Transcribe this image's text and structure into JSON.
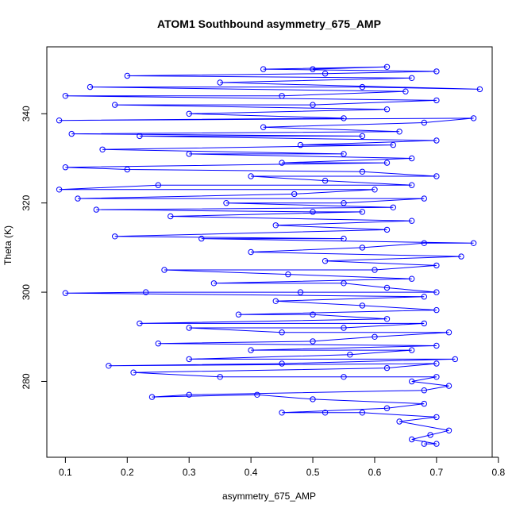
{
  "chart_data": {
    "type": "scatter",
    "title": "ATOM1 Southbound asymmetry_675_AMP",
    "xlabel": "asymmetry_675_AMP",
    "ylabel": "Theta (K)",
    "xlim": [
      0.07,
      0.79
    ],
    "ylim": [
      263,
      355
    ],
    "x_ticks": [
      0.1,
      0.2,
      0.3,
      0.4,
      0.5,
      0.6,
      0.7,
      0.8
    ],
    "y_ticks": [
      280,
      300,
      320,
      340
    ],
    "x_tick_labels": [
      "0.1",
      "0.2",
      "0.3",
      "0.4",
      "0.5",
      "0.6",
      "0.7",
      "0.8"
    ],
    "y_tick_labels": [
      "280",
      "300",
      "320",
      "340"
    ],
    "grid": false,
    "legend": "none",
    "series": [
      {
        "color": "#0000ff",
        "marker": "open-circle",
        "line": true,
        "points": [
          [
            0.68,
            266
          ],
          [
            0.7,
            266
          ],
          [
            0.66,
            267
          ],
          [
            0.69,
            268
          ],
          [
            0.72,
            269
          ],
          [
            0.64,
            271
          ],
          [
            0.7,
            272
          ],
          [
            0.58,
            273
          ],
          [
            0.52,
            273
          ],
          [
            0.45,
            273
          ],
          [
            0.62,
            274
          ],
          [
            0.68,
            275
          ],
          [
            0.5,
            276
          ],
          [
            0.41,
            277
          ],
          [
            0.24,
            276.5
          ],
          [
            0.3,
            277
          ],
          [
            0.68,
            278
          ],
          [
            0.72,
            279
          ],
          [
            0.66,
            280
          ],
          [
            0.7,
            281
          ],
          [
            0.55,
            281
          ],
          [
            0.35,
            281
          ],
          [
            0.21,
            282
          ],
          [
            0.62,
            283
          ],
          [
            0.7,
            284
          ],
          [
            0.17,
            283.5
          ],
          [
            0.45,
            284
          ],
          [
            0.73,
            285
          ],
          [
            0.3,
            285
          ],
          [
            0.56,
            286
          ],
          [
            0.66,
            287
          ],
          [
            0.4,
            287
          ],
          [
            0.7,
            288
          ],
          [
            0.25,
            288.5
          ],
          [
            0.5,
            289
          ],
          [
            0.6,
            290
          ],
          [
            0.72,
            291
          ],
          [
            0.45,
            291
          ],
          [
            0.3,
            292
          ],
          [
            0.55,
            292
          ],
          [
            0.68,
            293
          ],
          [
            0.22,
            293
          ],
          [
            0.62,
            294
          ],
          [
            0.5,
            295
          ],
          [
            0.38,
            295
          ],
          [
            0.7,
            296
          ],
          [
            0.58,
            297
          ],
          [
            0.44,
            298
          ],
          [
            0.68,
            299
          ],
          [
            0.1,
            299.8
          ],
          [
            0.23,
            300
          ],
          [
            0.48,
            300
          ],
          [
            0.7,
            300
          ],
          [
            0.62,
            301
          ],
          [
            0.55,
            302
          ],
          [
            0.34,
            302
          ],
          [
            0.66,
            303
          ],
          [
            0.46,
            304
          ],
          [
            0.26,
            305
          ],
          [
            0.6,
            305
          ],
          [
            0.7,
            306
          ],
          [
            0.52,
            307
          ],
          [
            0.74,
            308
          ],
          [
            0.4,
            309
          ],
          [
            0.58,
            310
          ],
          [
            0.68,
            311
          ],
          [
            0.76,
            311
          ],
          [
            0.32,
            312
          ],
          [
            0.55,
            312
          ],
          [
            0.18,
            312.5
          ],
          [
            0.62,
            314
          ],
          [
            0.44,
            315
          ],
          [
            0.66,
            316
          ],
          [
            0.27,
            317
          ],
          [
            0.58,
            318
          ],
          [
            0.5,
            318
          ],
          [
            0.15,
            318.5
          ],
          [
            0.63,
            319
          ],
          [
            0.36,
            320
          ],
          [
            0.55,
            320
          ],
          [
            0.68,
            321
          ],
          [
            0.12,
            321
          ],
          [
            0.47,
            322
          ],
          [
            0.6,
            323
          ],
          [
            0.09,
            323
          ],
          [
            0.25,
            324
          ],
          [
            0.66,
            324
          ],
          [
            0.52,
            325
          ],
          [
            0.4,
            326
          ],
          [
            0.7,
            326
          ],
          [
            0.58,
            327
          ],
          [
            0.2,
            327.5
          ],
          [
            0.1,
            328
          ],
          [
            0.62,
            329
          ],
          [
            0.45,
            329
          ],
          [
            0.66,
            330
          ],
          [
            0.3,
            331
          ],
          [
            0.55,
            331
          ],
          [
            0.16,
            332
          ],
          [
            0.63,
            333
          ],
          [
            0.48,
            333
          ],
          [
            0.7,
            334
          ],
          [
            0.22,
            335
          ],
          [
            0.58,
            335
          ],
          [
            0.11,
            335.5
          ],
          [
            0.64,
            336
          ],
          [
            0.42,
            337
          ],
          [
            0.68,
            338
          ],
          [
            0.76,
            339
          ],
          [
            0.09,
            338.5
          ],
          [
            0.55,
            339
          ],
          [
            0.3,
            340
          ],
          [
            0.62,
            341
          ],
          [
            0.18,
            342
          ],
          [
            0.5,
            342
          ],
          [
            0.7,
            343
          ],
          [
            0.1,
            344
          ],
          [
            0.45,
            344
          ],
          [
            0.65,
            345
          ],
          [
            0.14,
            346
          ],
          [
            0.58,
            346
          ],
          [
            0.77,
            345.5
          ],
          [
            0.35,
            347
          ],
          [
            0.66,
            348
          ],
          [
            0.2,
            348.5
          ],
          [
            0.52,
            349
          ],
          [
            0.7,
            349.5
          ],
          [
            0.42,
            350
          ],
          [
            0.62,
            350.5
          ],
          [
            0.5,
            350
          ]
        ]
      }
    ]
  }
}
